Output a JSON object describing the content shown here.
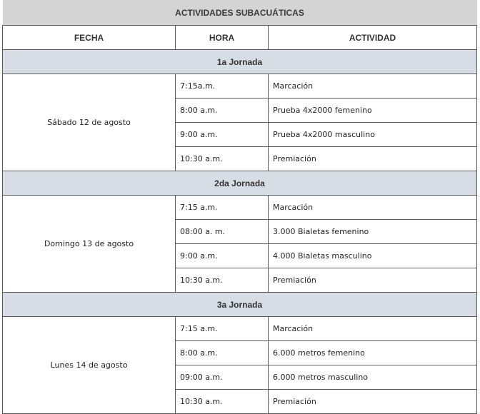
{
  "title": "ACTIVIDADES SUBACUÁTICAS",
  "headers": {
    "fecha": "FECHA",
    "hora": "HORA",
    "actividad": "ACTIVIDAD"
  },
  "jornadas": [
    {
      "label": "1a Jornada",
      "fecha": "Sábado 12 de agosto",
      "rows": [
        {
          "hora": "7:15a.m.",
          "actividad": "Marcación"
        },
        {
          "hora": "8:00 a.m.",
          "actividad": "Prueba 4x2000 femenino"
        },
        {
          "hora": "9:00  a.m.",
          "actividad": "Prueba 4x2000 masculino"
        },
        {
          "hora": "10:30 a.m.",
          "actividad": "Premiación"
        }
      ]
    },
    {
      "label": "2da Jornada",
      "fecha": "Domingo 13 de agosto",
      "rows": [
        {
          "hora": "7:15 a.m.",
          "actividad": "Marcación"
        },
        {
          "hora": "08:00 a. m.",
          "actividad": "3.000 Bialetas femenino"
        },
        {
          "hora": "9:00 a.m.",
          "actividad": "4.000 Bialetas masculino"
        },
        {
          "hora": "10:30 a.m.",
          "actividad": "Premiación"
        }
      ]
    },
    {
      "label": "3a Jornada",
      "fecha": "Lunes 14 de agosto",
      "rows": [
        {
          "hora": "7:15 a.m.",
          "actividad": "Marcación"
        },
        {
          "hora": "8:00 a.m.",
          "actividad": "6.000 metros femenino"
        },
        {
          "hora": "09:00 a.m.",
          "actividad": "6.000 metros masculino"
        },
        {
          "hora": "10:30 a.m.",
          "actividad": "Premiación"
        }
      ]
    }
  ]
}
